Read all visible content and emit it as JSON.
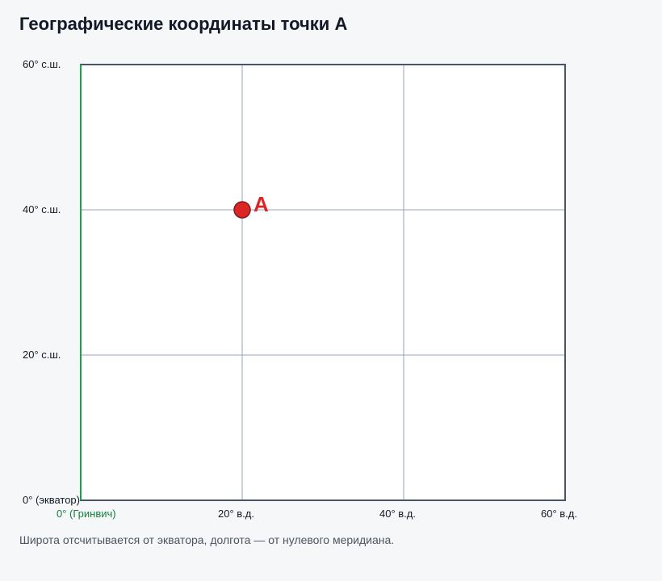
{
  "title": "Географические координаты точки А",
  "caption": "Широта отсчитывается от экватора, долгота — от нулевого меридиана.",
  "colors": {
    "frame": "#475569",
    "grid": "#94a3b8",
    "prime_meridian": "#16a34a",
    "point": "#dc2626",
    "point_stroke": "#7f1d1d",
    "label_point": "#dc2626",
    "prime_label": "#15803d"
  },
  "latitudes": [
    {
      "value": 60,
      "label": "60° с.ш."
    },
    {
      "value": 40,
      "label": "40° с.ш."
    },
    {
      "value": 20,
      "label": "20° с.ш."
    },
    {
      "value": 0,
      "label": "0° (экватор)"
    }
  ],
  "longitudes": [
    {
      "value": 0,
      "label": "0° (Гринвич)",
      "prime": true
    },
    {
      "value": 20,
      "label": "20° в.д."
    },
    {
      "value": 40,
      "label": "40° в.д."
    },
    {
      "value": 60,
      "label": "60° в.д."
    }
  ],
  "lat_range": [
    0,
    60
  ],
  "lon_range": [
    0,
    60
  ],
  "point": {
    "label": "А",
    "lat": 40,
    "lon": 20
  }
}
